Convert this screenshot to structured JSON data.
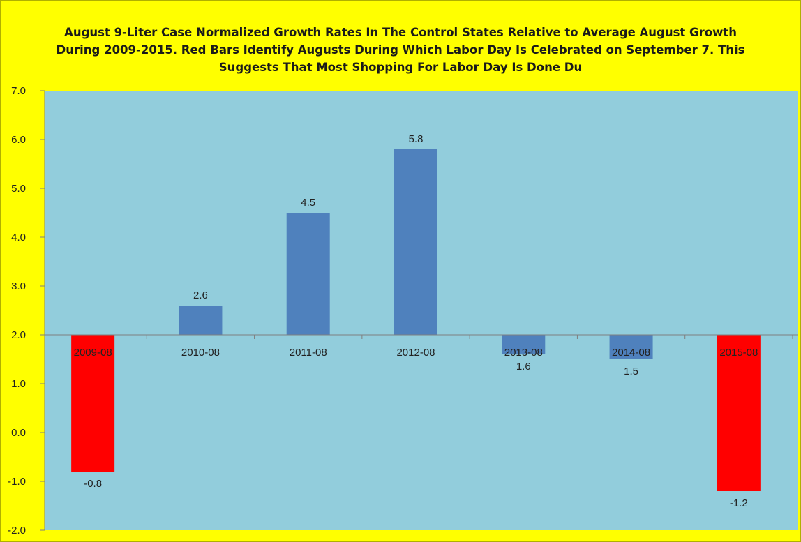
{
  "chart_data": {
    "type": "bar",
    "title": "August  9-Liter Case Normalized Growth Rates In The Control States Relative to Average August Growth During 2009-2015. Red Bars Identify Augusts During Which Labor Day Is Celebrated on September 7. This Suggests That Most Shopping For Labor Day Is Done Du",
    "xlabel": "",
    "ylabel": "",
    "categories": [
      "2009-08",
      "2010-08",
      "2011-08",
      "2012-08",
      "2013-08",
      "2014-08",
      "2015-08"
    ],
    "values": [
      -0.8,
      2.6,
      4.5,
      5.8,
      1.6,
      1.5,
      -1.2
    ],
    "data_labels": [
      "-0.8",
      "2.6",
      "4.5",
      "5.8",
      "1.6",
      "1.5",
      "-1.2"
    ],
    "bar_colors": [
      "#ff0000",
      "#4f81bd",
      "#4f81bd",
      "#4f81bd",
      "#4f81bd",
      "#4f81bd",
      "#ff0000"
    ],
    "baseline": 2.0,
    "ylim": [
      -2.0,
      7.0
    ],
    "yticks": [
      "-2.0",
      "-1.0",
      "0.0",
      "1.0",
      "2.0",
      "3.0",
      "4.0",
      "5.0",
      "6.0",
      "7.0"
    ],
    "grid": false,
    "legend": "none",
    "colors": {
      "background": "#ffff00",
      "plot_area": "#92cddc",
      "axis": "#7f7f7f"
    }
  }
}
